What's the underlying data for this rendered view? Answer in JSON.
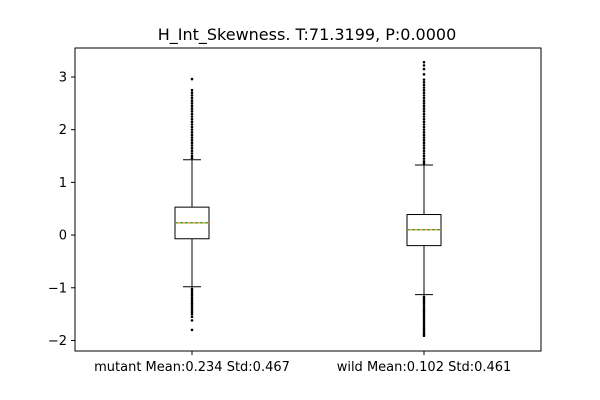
{
  "chart_data": {
    "type": "box",
    "title": "H_Int_Skewness. T:71.3199, P:0.0000",
    "xlabel": "",
    "ylabel": "",
    "ylim": [
      -2.2,
      3.55
    ],
    "yticks": [
      -2,
      -1,
      0,
      1,
      2,
      3
    ],
    "ytick_labels": [
      "−2",
      "−1",
      "0",
      "1",
      "2",
      "3"
    ],
    "categories": [
      "mutant Mean:0.234 Std:0.467",
      "wild Mean:0.102 Std:0.461"
    ],
    "colors": {
      "box_edge": "#000000",
      "median": "#ff7f0e",
      "mean": "#2ca02c",
      "flier": "#000000"
    },
    "series": [
      {
        "whisker_low": -0.98,
        "q1": -0.07,
        "median": 0.23,
        "mean": 0.234,
        "q3": 0.53,
        "whisker_high": 1.43,
        "fliers_high": [
          1.46,
          1.5,
          1.55,
          1.6,
          1.65,
          1.7,
          1.75,
          1.8,
          1.85,
          1.9,
          1.95,
          2.0,
          2.05,
          2.1,
          2.15,
          2.2,
          2.25,
          2.3,
          2.35,
          2.4,
          2.45,
          2.5,
          2.55,
          2.6,
          2.65,
          2.7,
          2.75,
          2.96
        ],
        "fliers_low": [
          -1.02,
          -1.06,
          -1.1,
          -1.14,
          -1.18,
          -1.22,
          -1.26,
          -1.3,
          -1.34,
          -1.38,
          -1.42,
          -1.46,
          -1.5,
          -1.55,
          -1.62,
          -1.8
        ]
      },
      {
        "whisker_low": -1.13,
        "q1": -0.2,
        "median": 0.1,
        "mean": 0.102,
        "q3": 0.39,
        "whisker_high": 1.33,
        "fliers_high": [
          1.36,
          1.4,
          1.45,
          1.5,
          1.55,
          1.6,
          1.65,
          1.7,
          1.75,
          1.8,
          1.85,
          1.9,
          1.95,
          2.0,
          2.05,
          2.1,
          2.15,
          2.2,
          2.25,
          2.3,
          2.35,
          2.4,
          2.45,
          2.5,
          2.55,
          2.6,
          2.65,
          2.7,
          2.75,
          2.8,
          2.85,
          2.9,
          2.95,
          3.05,
          3.15,
          3.22,
          3.28
        ],
        "fliers_low": [
          -1.17,
          -1.21,
          -1.25,
          -1.29,
          -1.33,
          -1.37,
          -1.41,
          -1.45,
          -1.49,
          -1.53,
          -1.57,
          -1.61,
          -1.65,
          -1.69,
          -1.73,
          -1.77,
          -1.81,
          -1.85,
          -1.88,
          -1.91
        ]
      }
    ]
  }
}
